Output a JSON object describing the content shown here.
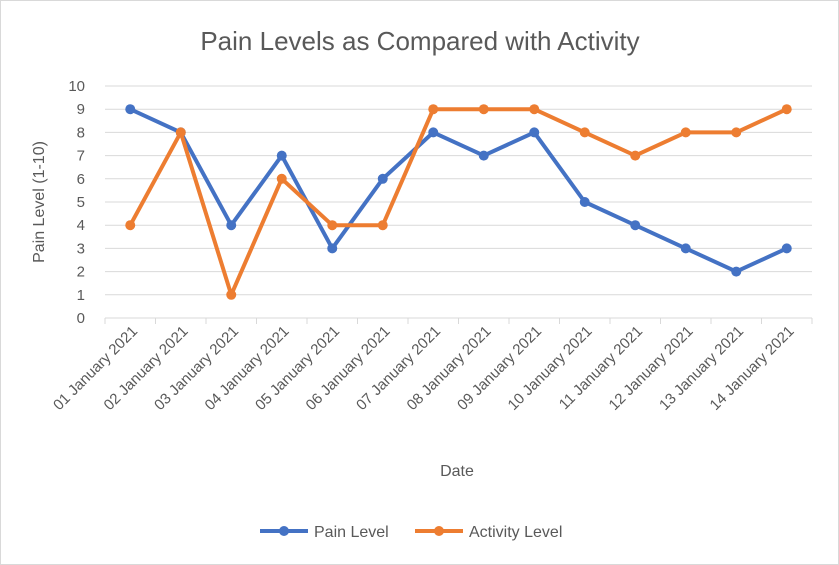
{
  "chart_data": {
    "type": "line",
    "title": "Pain Levels as Compared with Activity",
    "xlabel": "Date",
    "ylabel": "Pain Level (1-10)",
    "ylim": [
      0,
      10
    ],
    "yticks": [
      0,
      1,
      2,
      3,
      4,
      5,
      6,
      7,
      8,
      9,
      10
    ],
    "grid": true,
    "legend_position": "bottom",
    "categories": [
      "01 January 2021",
      "02 January 2021",
      "03 January 2021",
      "04 January 2021",
      "05 January 2021",
      "06 January 2021",
      "07 January 2021",
      "08 January 2021",
      "09 January 2021",
      "10 January 2021",
      "11 January 2021",
      "12 January 2021",
      "13 January 2021",
      "14 January 2021"
    ],
    "series": [
      {
        "name": "Pain Level",
        "color": "#4472c4",
        "values": [
          9,
          8,
          4,
          7,
          3,
          6,
          8,
          7,
          8,
          5,
          4,
          3,
          2,
          3
        ]
      },
      {
        "name": "Activity Level",
        "color": "#ed7d31",
        "values": [
          4,
          8,
          1,
          6,
          4,
          4,
          9,
          9,
          9,
          8,
          7,
          8,
          8,
          9
        ]
      }
    ]
  }
}
